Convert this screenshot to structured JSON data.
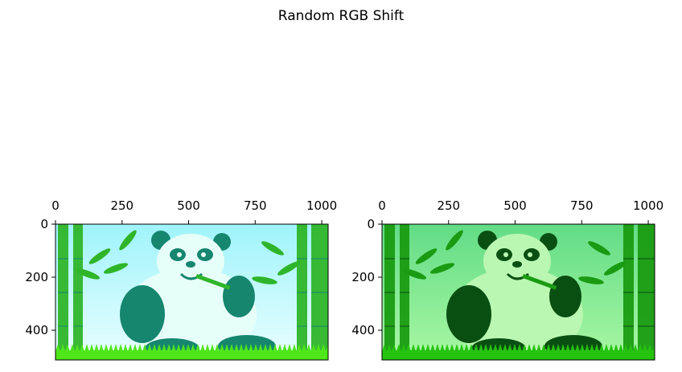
{
  "figure": {
    "title": "Random RGB Shift"
  },
  "panels": [
    {
      "name": "left",
      "x_ticks": [
        "0",
        "250",
        "500",
        "750",
        "1000"
      ],
      "y_ticks": [
        "0",
        "200",
        "400"
      ],
      "x_range": [
        0,
        1024
      ],
      "y_range": [
        0,
        512
      ],
      "tint": {
        "sky_top": "#9ff4fb",
        "sky_bottom": "#e9feff",
        "bamboo": "#2fb52a",
        "panda_dark": "#16866f",
        "panda_light": "#e7fff9",
        "grass": "#4fe61a"
      }
    },
    {
      "name": "right",
      "x_ticks": [
        "0",
        "250",
        "500",
        "750",
        "1000"
      ],
      "y_ticks": [
        "0",
        "200",
        "400"
      ],
      "x_range": [
        0,
        1024
      ],
      "y_range": [
        0,
        512
      ],
      "tint": {
        "sky_top": "#62dc86",
        "sky_bottom": "#a9f7a3",
        "bamboo": "#1a9b12",
        "panda_dark": "#0a4f12",
        "panda_light": "#baf7b2",
        "grass": "#25c30f"
      }
    }
  ]
}
